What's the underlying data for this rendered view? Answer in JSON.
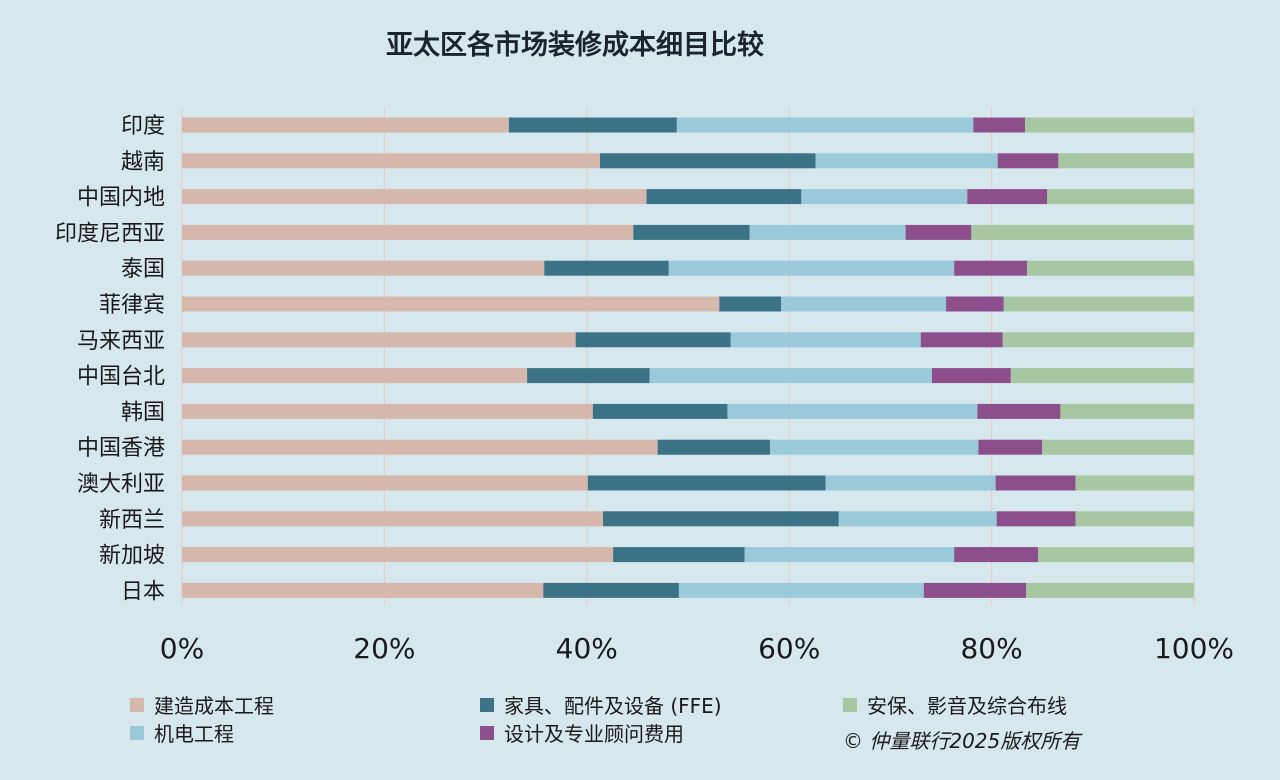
{
  "colors": {
    "background": "#d6e7ee",
    "gridline": "#e8c9bf"
  },
  "chart_data": {
    "type": "bar",
    "orientation": "horizontal",
    "stacked": true,
    "normalized": true,
    "title": "亚太区各市场装修成本细目比较",
    "categories": [
      "印度",
      "越南",
      "中国内地",
      "印度尼西亚",
      "泰国",
      "菲律宾",
      "马来西亚",
      "中国台北",
      "韩国",
      "中国香港",
      "澳大利亚",
      "新西兰",
      "新加坡",
      "日本"
    ],
    "xlim": [
      0,
      100
    ],
    "x_ticks": [
      "0%",
      "20%",
      "40%",
      "60%",
      "80%",
      "100%"
    ],
    "grid": "vertical",
    "legend_position": "bottom",
    "series": [
      {
        "name": "建造成本工程",
        "color": "#d5b8ab",
        "values": [
          32.3,
          41.3,
          45.9,
          44.6,
          35.8,
          53.1,
          38.9,
          34.1,
          40.6,
          47.0,
          40.1,
          41.6,
          42.6,
          35.7
        ]
      },
      {
        "name": "家具、配件及设备 (FFE)",
        "color": "#3c7285",
        "values": [
          16.6,
          21.3,
          15.3,
          11.5,
          12.3,
          6.1,
          15.3,
          12.1,
          13.3,
          11.1,
          23.5,
          23.3,
          13.0,
          13.4
        ]
      },
      {
        "name": "机电工程",
        "color": "#9ac9d9",
        "values": [
          29.3,
          18.0,
          16.4,
          15.4,
          28.2,
          16.3,
          18.8,
          27.9,
          24.7,
          20.6,
          16.8,
          15.6,
          20.7,
          24.2
        ]
      },
      {
        "name": "设计及专业顾问费用",
        "color": "#8d4f8c",
        "values": [
          5.1,
          6.0,
          7.9,
          6.5,
          7.2,
          5.7,
          8.1,
          7.8,
          8.2,
          6.3,
          7.9,
          7.8,
          8.3,
          10.1
        ]
      },
      {
        "name": "安保、影音及综合布线",
        "color": "#a7c7a3",
        "values": [
          16.7,
          13.4,
          14.5,
          22.0,
          16.5,
          18.8,
          18.9,
          18.1,
          13.2,
          15.0,
          11.7,
          11.7,
          15.4,
          16.6
        ]
      }
    ],
    "legend_order": [
      0,
      1,
      4,
      2,
      3
    ],
    "copyright": "© 仲量联行2025版权所有"
  }
}
